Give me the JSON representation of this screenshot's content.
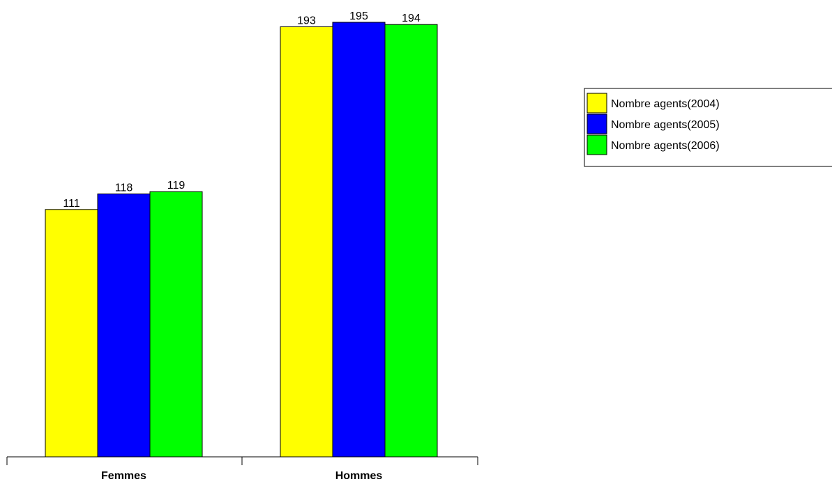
{
  "chart_data": {
    "type": "bar",
    "title": "",
    "xlabel": "",
    "ylabel": "",
    "ylim": [
      0,
      200
    ],
    "grid": false,
    "legend_position": "right",
    "categories": [
      "Femmes",
      "Hommes"
    ],
    "series": [
      {
        "name": "Nombre agents(2004)",
        "color": "#ffff00",
        "values": [
          111,
          193
        ]
      },
      {
        "name": "Nombre agents(2005)",
        "color": "#0000ff",
        "values": [
          118,
          195
        ]
      },
      {
        "name": "Nombre agents(2006)",
        "color": "#00ff00",
        "values": [
          119,
          194
        ]
      }
    ]
  }
}
